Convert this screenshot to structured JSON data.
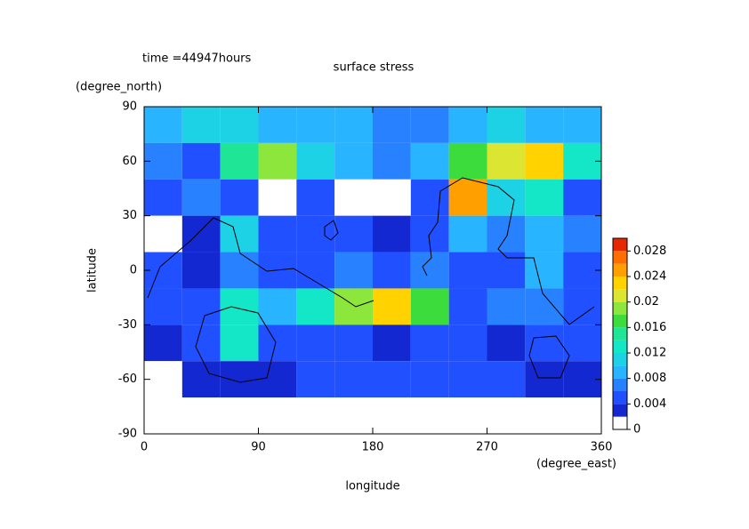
{
  "chart_data": {
    "type": "contour",
    "title": "surface stress",
    "subtitle": "time =44947hours",
    "xlabel": "longitude",
    "xunit": "(degree_east)",
    "ylabel": "latitude",
    "yunit": "(degree_north)",
    "xlim": [
      0,
      360
    ],
    "xticks": [
      0,
      90,
      180,
      270,
      360
    ],
    "ylim": [
      -90,
      90
    ],
    "yticks": [
      90,
      60,
      30,
      0,
      -30,
      -60,
      -90
    ],
    "x": [
      15,
      45,
      75,
      105,
      135,
      165,
      195,
      225,
      255,
      285,
      315,
      345
    ],
    "y": [
      80,
      60,
      40,
      20,
      0,
      -20,
      -40,
      -60,
      -80
    ],
    "z": [
      [
        0.009,
        0.01,
        0.01,
        0.008,
        0.008,
        0.008,
        0.007,
        0.007,
        0.008,
        0.01,
        0.009,
        0.009
      ],
      [
        0.006,
        0.005,
        0.014,
        0.018,
        0.01,
        0.008,
        0.007,
        0.008,
        0.016,
        0.02,
        0.022,
        0.012
      ],
      [
        0.004,
        0.006,
        0.004,
        0,
        0.005,
        0,
        0,
        0.004,
        0.024,
        0.01,
        0.012,
        0.004
      ],
      [
        0,
        0.003,
        0.01,
        0.004,
        0.004,
        0.004,
        0.003,
        0.004,
        0.008,
        0.006,
        0.008,
        0.006
      ],
      [
        0.004,
        0.003,
        0.006,
        0.004,
        0.004,
        0.006,
        0.004,
        0.006,
        0.005,
        0.004,
        0.008,
        0.004
      ],
      [
        0.005,
        0.004,
        0.012,
        0.008,
        0.012,
        0.018,
        0.022,
        0.016,
        0.005,
        0.006,
        0.006,
        0.005
      ],
      [
        0.003,
        0.005,
        0.012,
        0.005,
        0.004,
        0.004,
        0.003,
        0.004,
        0.004,
        0.003,
        0.005,
        0.004
      ],
      [
        0,
        0.003,
        0.003,
        0.003,
        0.005,
        0.004,
        0.005,
        0.005,
        0.005,
        0.004,
        0.003,
        0.003
      ],
      [
        0,
        0,
        0,
        0,
        0,
        0,
        0,
        0,
        0,
        0,
        0,
        0
      ]
    ],
    "colorbar": {
      "levels": [
        0,
        0.002,
        0.004,
        0.006,
        0.008,
        0.01,
        0.012,
        0.014,
        0.016,
        0.018,
        0.02,
        0.022,
        0.024,
        0.026,
        0.028,
        0.03
      ],
      "colors": [
        "#ffffff",
        "#1428d2",
        "#2050ff",
        "#2882ff",
        "#28b4ff",
        "#1ed2e6",
        "#14e6c8",
        "#1ee696",
        "#3cdc3c",
        "#8ce63c",
        "#dce632",
        "#ffd200",
        "#ffa000",
        "#ff6e00",
        "#e62800"
      ],
      "ticks": [
        0,
        0.004,
        0.008,
        0.012,
        0.016,
        0.02,
        0.024,
        0.028
      ]
    }
  }
}
